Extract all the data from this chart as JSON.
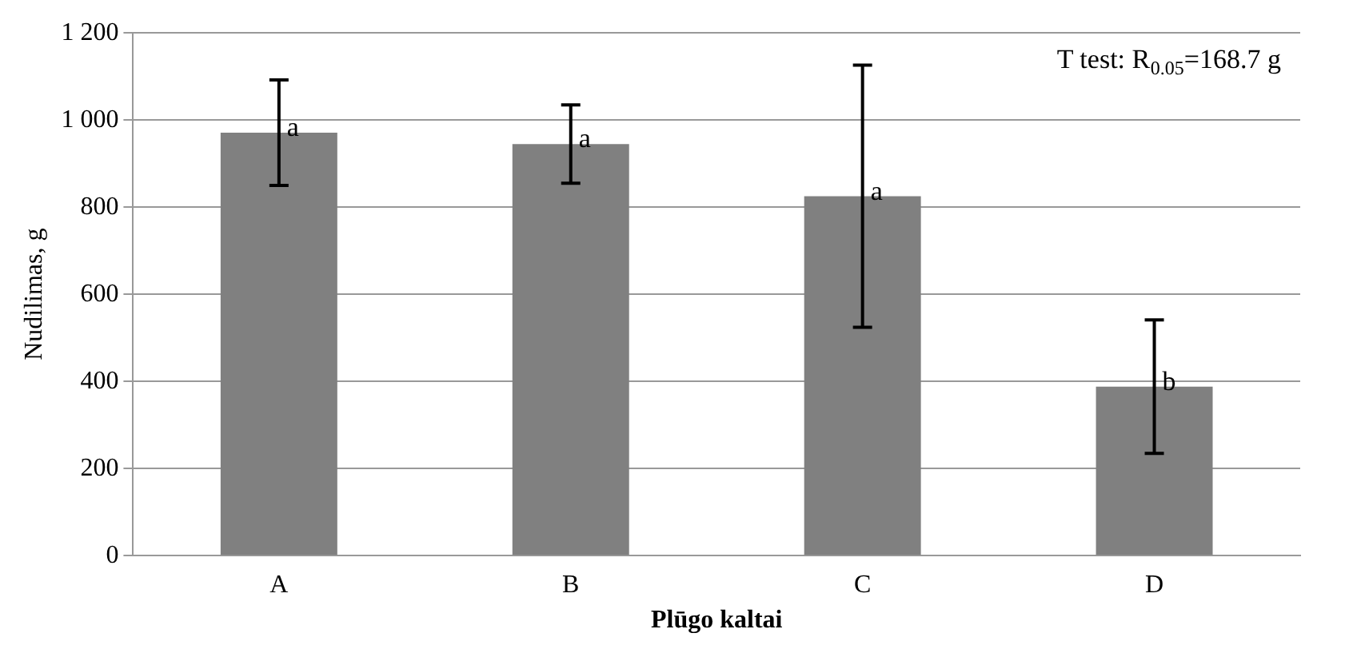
{
  "chart_data": {
    "type": "bar",
    "xlabel": "Plūgo kaltai",
    "ylabel": "Nudilimas, g",
    "categories": [
      "A",
      "B",
      "C",
      "D"
    ],
    "values": [
      971,
      945,
      825,
      388
    ],
    "errors": [
      121,
      90,
      301,
      153
    ],
    "color": "#808080",
    "ylim": [
      0,
      1200
    ],
    "yticks": [
      0,
      200,
      400,
      600,
      800,
      {
        "value": 1000,
        "label": "1 000"
      },
      {
        "value": 1200,
        "label": "1 200"
      }
    ],
    "grid": "y",
    "legend": false,
    "annotations": [
      {
        "text": "a",
        "x": "A",
        "y": 971
      },
      {
        "text": "a",
        "x": "B",
        "y": 945
      },
      {
        "text": "a",
        "x": "C",
        "y": 825
      },
      {
        "text": "b",
        "x": "D",
        "y": 388
      },
      "T test: R$_{0.05}$=168.7 g"
    ]
  }
}
